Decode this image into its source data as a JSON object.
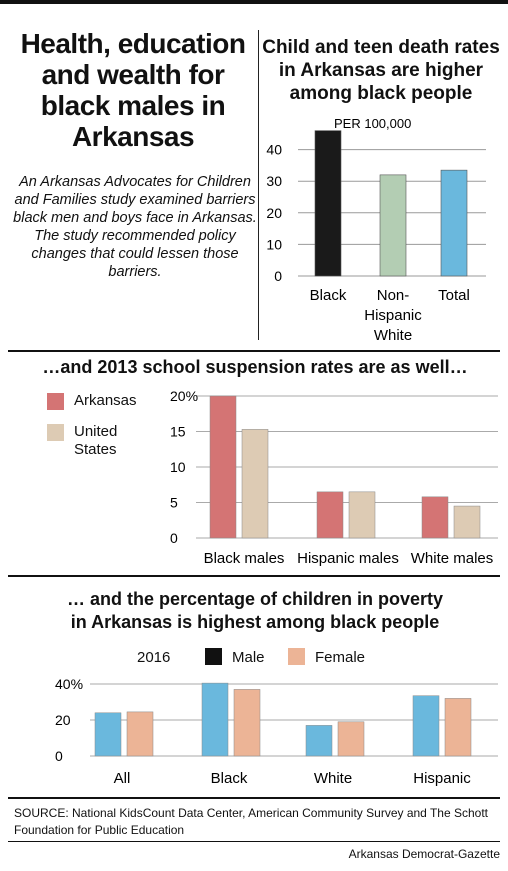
{
  "header": {
    "title": "Health, education and wealth for black males in Arkansas",
    "intro": "An Arkansas Advocates for Children and Families study examined barriers black men and boys face in Arkansas. The study recommended policy changes that could lessen those barriers."
  },
  "chart_data": [
    {
      "type": "bar",
      "title": "Child and teen death rates in Arkansas are higher among black people",
      "unit_label": "PER 100,000",
      "categories": [
        "Black",
        "Non-Hispanic White",
        "Total"
      ],
      "category_lines": [
        [
          "Black"
        ],
        [
          "Non-",
          "Hispanic",
          "White"
        ],
        [
          "Total"
        ]
      ],
      "values": [
        46,
        32,
        33.5
      ],
      "colors": [
        "#1a1a1a",
        "#b3cdb3",
        "#6ab8dd"
      ],
      "yticks": [
        0,
        10,
        20,
        30,
        40
      ],
      "ylim": [
        0,
        50
      ],
      "grid": true
    },
    {
      "type": "bar",
      "title": "…and 2013 school suspension rates are as well…",
      "categories": [
        "Black males",
        "Hispanic males",
        "White males"
      ],
      "series": [
        {
          "name": "Arkansas",
          "values": [
            20,
            6.5,
            5.8
          ],
          "color": "#d47474"
        },
        {
          "name": "United States",
          "values": [
            15.3,
            6.5,
            4.5
          ],
          "color": "#ddcbb4"
        }
      ],
      "yticks": [
        0,
        5,
        10,
        15,
        20
      ],
      "ytick_labels": [
        "0",
        "5",
        "10",
        "15",
        "20%"
      ],
      "ylim": [
        0,
        20
      ],
      "grid": true,
      "legend_placement": "left"
    },
    {
      "type": "bar",
      "title": "… and the percentage of children in poverty in Arkansas is highest among black people",
      "year_label": "2016",
      "categories": [
        "All",
        "Black",
        "White",
        "Hispanic"
      ],
      "series": [
        {
          "name": "Male",
          "values": [
            24,
            40.5,
            17,
            33.5
          ],
          "color": "#6ab8dd"
        },
        {
          "name": "Female",
          "values": [
            24.5,
            37,
            19,
            32
          ],
          "color": "#ecb496"
        }
      ],
      "legend_swatch_colors": [
        "#111111",
        "#ecb496"
      ],
      "yticks": [
        0,
        20,
        40
      ],
      "ytick_labels": [
        "0",
        "20",
        "40%"
      ],
      "ylim": [
        0,
        40
      ],
      "grid": true,
      "legend_placement": "top"
    }
  ],
  "footer": {
    "source": "SOURCE: National KidsCount Data Center, American Community Survey and The Schott Foundation for Public Education",
    "credit": "Arkansas Democrat-Gazette"
  }
}
